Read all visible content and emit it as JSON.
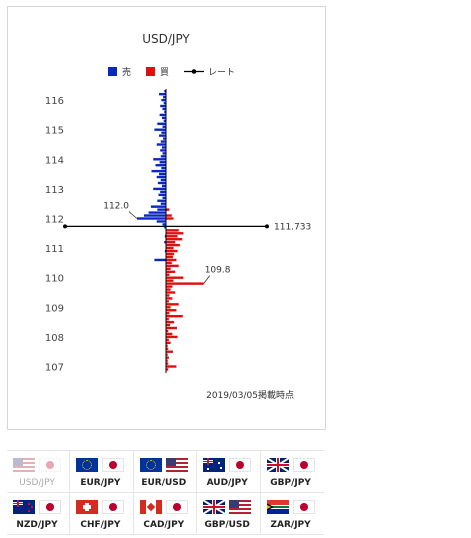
{
  "chart_data": {
    "type": "bar",
    "title": "USD/JPY",
    "legend": [
      {
        "label": "売",
        "color": "#0a27c4",
        "kind": "box"
      },
      {
        "label": "買",
        "color": "#e00f0f",
        "kind": "box"
      },
      {
        "label": "レート",
        "color": "#000000",
        "kind": "line"
      }
    ],
    "y_ticks": [
      107,
      108,
      109,
      110,
      111,
      112,
      113,
      114,
      115,
      116
    ],
    "ylim": [
      106.8,
      116.5
    ],
    "current_rate": 111.733,
    "current_rate_label": "111.733",
    "annotations": [
      {
        "label": "112.0",
        "price": 112.0,
        "side": "sell"
      },
      {
        "label": "109.8",
        "price": 109.8,
        "side": "buy"
      }
    ],
    "date_note": "2019/03/05掲載時点",
    "sell_series": {
      "name": "売",
      "color": "#0a27c4",
      "points": [
        [
          116.3,
          0.3
        ],
        [
          116.2,
          1.2
        ],
        [
          116.1,
          0.5
        ],
        [
          116.0,
          0.8
        ],
        [
          115.9,
          0.4
        ],
        [
          115.8,
          1.0
        ],
        [
          115.7,
          0.6
        ],
        [
          115.6,
          0.3
        ],
        [
          115.5,
          1.1
        ],
        [
          115.4,
          0.7
        ],
        [
          115.3,
          0.4
        ],
        [
          115.2,
          1.5
        ],
        [
          115.1,
          0.6
        ],
        [
          115.0,
          2.0
        ],
        [
          114.9,
          0.8
        ],
        [
          114.8,
          1.2
        ],
        [
          114.7,
          0.5
        ],
        [
          114.6,
          0.9
        ],
        [
          114.5,
          1.6
        ],
        [
          114.4,
          0.7
        ],
        [
          114.3,
          1.0
        ],
        [
          114.2,
          0.6
        ],
        [
          114.1,
          0.9
        ],
        [
          114.0,
          2.2
        ],
        [
          113.9,
          1.1
        ],
        [
          113.8,
          1.8
        ],
        [
          113.7,
          0.8
        ],
        [
          113.6,
          2.5
        ],
        [
          113.5,
          1.2
        ],
        [
          113.4,
          1.6
        ],
        [
          113.3,
          0.9
        ],
        [
          113.2,
          1.4
        ],
        [
          113.1,
          0.7
        ],
        [
          113.0,
          2.2
        ],
        [
          112.9,
          1.0
        ],
        [
          112.8,
          1.3
        ],
        [
          112.7,
          0.6
        ],
        [
          112.6,
          1.5
        ],
        [
          112.5,
          0.9
        ],
        [
          112.4,
          2.6
        ],
        [
          112.3,
          1.5
        ],
        [
          112.2,
          3.0
        ],
        [
          112.1,
          3.8
        ],
        [
          112.0,
          5.0
        ],
        [
          111.9,
          1.6
        ],
        [
          111.8,
          0.6
        ],
        [
          111.7,
          0.3
        ],
        [
          111.4,
          0.2
        ],
        [
          111.2,
          0.3
        ],
        [
          110.9,
          0.2
        ],
        [
          110.6,
          2.0
        ]
      ]
    },
    "buy_series": {
      "name": "買",
      "color": "#e00f0f",
      "points": [
        [
          112.3,
          0.6
        ],
        [
          112.1,
          1.0
        ],
        [
          112.0,
          1.3
        ],
        [
          111.6,
          2.2
        ],
        [
          111.5,
          3.0
        ],
        [
          111.4,
          2.0
        ],
        [
          111.3,
          2.8
        ],
        [
          111.2,
          1.6
        ],
        [
          111.1,
          2.4
        ],
        [
          111.0,
          1.3
        ],
        [
          110.9,
          2.0
        ],
        [
          110.8,
          1.4
        ],
        [
          110.7,
          1.2
        ],
        [
          110.6,
          1.8
        ],
        [
          110.5,
          1.0
        ],
        [
          110.4,
          2.2
        ],
        [
          110.3,
          0.8
        ],
        [
          110.2,
          1.6
        ],
        [
          110.1,
          0.6
        ],
        [
          110.0,
          3.0
        ],
        [
          109.9,
          1.3
        ],
        [
          109.8,
          6.5
        ],
        [
          109.7,
          1.1
        ],
        [
          109.6,
          0.8
        ],
        [
          109.5,
          1.6
        ],
        [
          109.4,
          0.6
        ],
        [
          109.3,
          1.1
        ],
        [
          109.2,
          0.5
        ],
        [
          109.1,
          2.2
        ],
        [
          109.0,
          0.8
        ],
        [
          108.9,
          1.8
        ],
        [
          108.8,
          0.6
        ],
        [
          108.7,
          2.9
        ],
        [
          108.6,
          0.5
        ],
        [
          108.5,
          1.4
        ],
        [
          108.4,
          0.7
        ],
        [
          108.3,
          1.9
        ],
        [
          108.2,
          0.4
        ],
        [
          108.1,
          1.1
        ],
        [
          108.0,
          2.0
        ],
        [
          107.9,
          0.5
        ],
        [
          107.8,
          0.8
        ],
        [
          107.7,
          0.3
        ],
        [
          107.6,
          0.4
        ],
        [
          107.5,
          1.2
        ],
        [
          107.4,
          0.3
        ],
        [
          107.3,
          0.5
        ],
        [
          107.2,
          0.3
        ],
        [
          107.1,
          0.4
        ],
        [
          107.0,
          1.8
        ],
        [
          106.9,
          0.4
        ]
      ]
    }
  },
  "currency_pairs": [
    {
      "label": "USD/JPY",
      "flags": [
        "us",
        "jp"
      ],
      "active": true
    },
    {
      "label": "EUR/JPY",
      "flags": [
        "eu",
        "jp"
      ],
      "active": false
    },
    {
      "label": "EUR/USD",
      "flags": [
        "eu",
        "us"
      ],
      "active": false
    },
    {
      "label": "AUD/JPY",
      "flags": [
        "au",
        "jp"
      ],
      "active": false
    },
    {
      "label": "GBP/JPY",
      "flags": [
        "gb",
        "jp"
      ],
      "active": false
    },
    {
      "label": "NZD/JPY",
      "flags": [
        "nz",
        "jp"
      ],
      "active": false
    },
    {
      "label": "CHF/JPY",
      "flags": [
        "ch",
        "jp"
      ],
      "active": false
    },
    {
      "label": "CAD/JPY",
      "flags": [
        "ca",
        "jp"
      ],
      "active": false
    },
    {
      "label": "GBP/USD",
      "flags": [
        "gb",
        "us"
      ],
      "active": false
    },
    {
      "label": "ZAR/JPY",
      "flags": [
        "za",
        "jp"
      ],
      "active": false
    }
  ]
}
